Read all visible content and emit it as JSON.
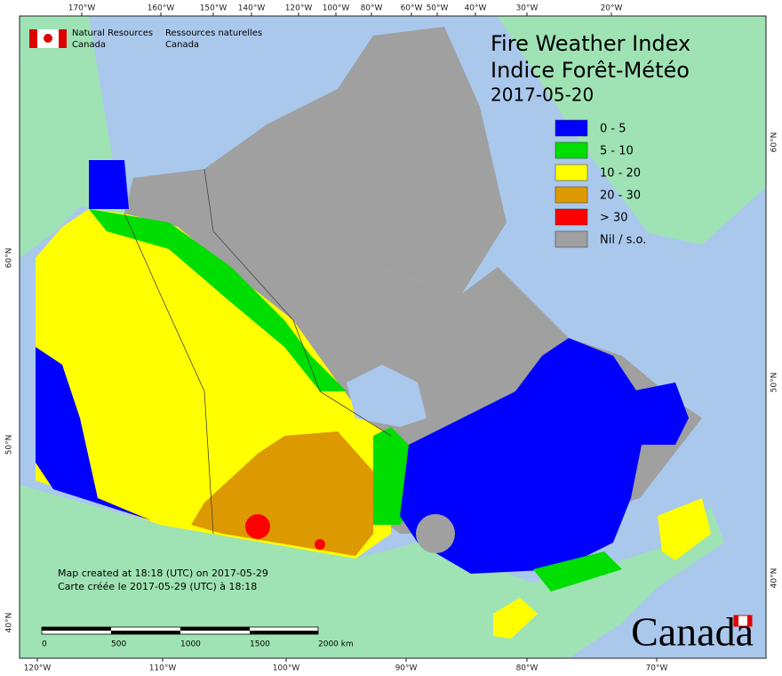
{
  "logo": {
    "en": [
      "Natural Resources",
      "Canada"
    ],
    "fr": [
      "Ressources naturelles",
      "Canada"
    ]
  },
  "title": [
    "Fire Weather Index",
    "Indice Forêt-Météo"
  ],
  "date": "2017-05-20",
  "legend": [
    {
      "label": "0 - 5",
      "color": "#0000ff"
    },
    {
      "label": "5 - 10",
      "color": "#00dd00"
    },
    {
      "label": "10 - 20",
      "color": "#ffff00"
    },
    {
      "label": "20 - 30",
      "color": "#dd9900"
    },
    {
      "label": "> 30",
      "color": "#ff0000"
    },
    {
      "label": "Nil / s.o.",
      "color": "#a0a0a0"
    }
  ],
  "top_labels": [
    "170°W",
    "160°W",
    "150°W",
    "140°W",
    "120°W",
    "100°W",
    "80°W",
    "60°W",
    "50°W",
    "40°W",
    "30°W",
    "20°W"
  ],
  "bottom_labels": [
    "120°W",
    "110°W",
    "100°W",
    "90°W",
    "80°W",
    "70°W"
  ],
  "left_labels": [
    "60°N",
    "50°N",
    "40°N"
  ],
  "right_labels": [
    "60°N",
    "50°N",
    "40°N"
  ],
  "credits": [
    "Map created at 18:18 (UTC) on 2017-05-29",
    "Carte créée le 2017-05-29 (UTC) à 18:18"
  ],
  "scale_labels": [
    "0",
    "500",
    "1000",
    "1500",
    "2000  km"
  ],
  "wordmark": "Canada"
}
